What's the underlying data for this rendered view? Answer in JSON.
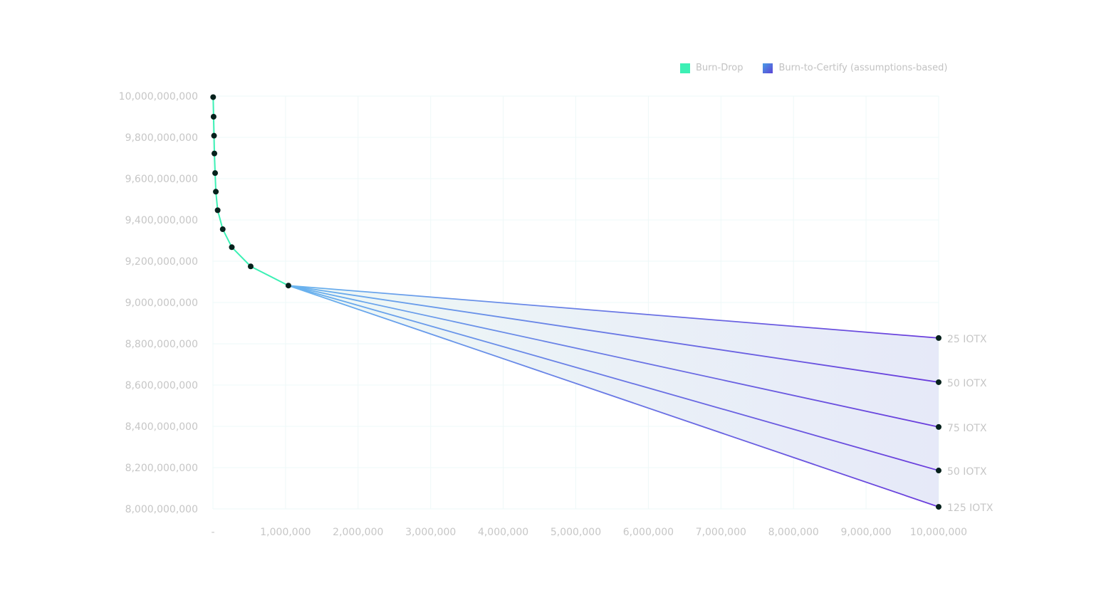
{
  "chart_data": {
    "type": "line",
    "title": "",
    "xlabel": "",
    "ylabel": "",
    "xlim": [
      0,
      10000000
    ],
    "ylim": [
      8000000000,
      10000000000
    ],
    "x_ticks": [
      "-",
      "1,000,000",
      "2,000,000",
      "3,000,000",
      "4,000,000",
      "5,000,000",
      "6,000,000",
      "7,000,000",
      "8,000,000",
      "9,000,000",
      "10,000,000"
    ],
    "x_tick_values": [
      0,
      1000000,
      2000000,
      3000000,
      4000000,
      5000000,
      6000000,
      7000000,
      8000000,
      9000000,
      10000000
    ],
    "y_ticks": [
      "10,000,000,000",
      "9,800,000,000",
      "9,600,000,000",
      "9,400,000,000",
      "9,200,000,000",
      "9,000,000,000",
      "8,800,000,000",
      "8,600,000,000",
      "8,400,000,000",
      "8,200,000,000",
      "8,000,000,000"
    ],
    "y_tick_values": [
      10000000000,
      9800000000,
      9600000000,
      9400000000,
      9200000000,
      9000000000,
      8800000000,
      8600000000,
      8400000000,
      8200000000,
      8000000000
    ],
    "grid": true,
    "legend_position": "top-right",
    "legend": [
      {
        "label": "Burn-Drop",
        "color": "#3cf0b4"
      },
      {
        "label": "Burn-to-Certify (assumptions-based)",
        "color": "#5b6fd8"
      }
    ],
    "series": [
      {
        "name": "Burn-Drop",
        "color": "#3cf0b4",
        "points": [
          [
            3000,
            9995000000
          ],
          [
            9000,
            9900000000
          ],
          [
            15000,
            9808000000
          ],
          [
            20000,
            9722000000
          ],
          [
            30000,
            9627000000
          ],
          [
            40000,
            9537000000
          ],
          [
            65000,
            9447000000
          ],
          [
            135000,
            9355000000
          ],
          [
            260000,
            9268000000
          ],
          [
            520000,
            9175000000
          ],
          [
            1040000,
            9082000000
          ]
        ]
      }
    ],
    "projections": [
      {
        "label": "25 IOTX",
        "start": [
          1040000,
          9082000000
        ],
        "end": [
          10000000,
          8828000000
        ]
      },
      {
        "label": "50 IOTX",
        "start": [
          1040000,
          9082000000
        ],
        "end": [
          10000000,
          8614000000
        ]
      },
      {
        "label": "75 IOTX",
        "start": [
          1040000,
          9082000000
        ],
        "end": [
          10000000,
          8397000000
        ]
      },
      {
        "label": "50 IOTX",
        "start": [
          1040000,
          9082000000
        ],
        "end": [
          10000000,
          8186000000
        ]
      },
      {
        "label": "125 IOTX",
        "start": [
          1040000,
          9082000000
        ],
        "end": [
          10000000,
          8010000000
        ]
      }
    ],
    "colors": {
      "projection_start": "#69b4ee",
      "projection_end": "#6a3cdc",
      "fill_start": "#eef8f6",
      "fill_end": "#e6e9f8",
      "grid": "#eef8f8",
      "marker": "#06211c"
    }
  }
}
